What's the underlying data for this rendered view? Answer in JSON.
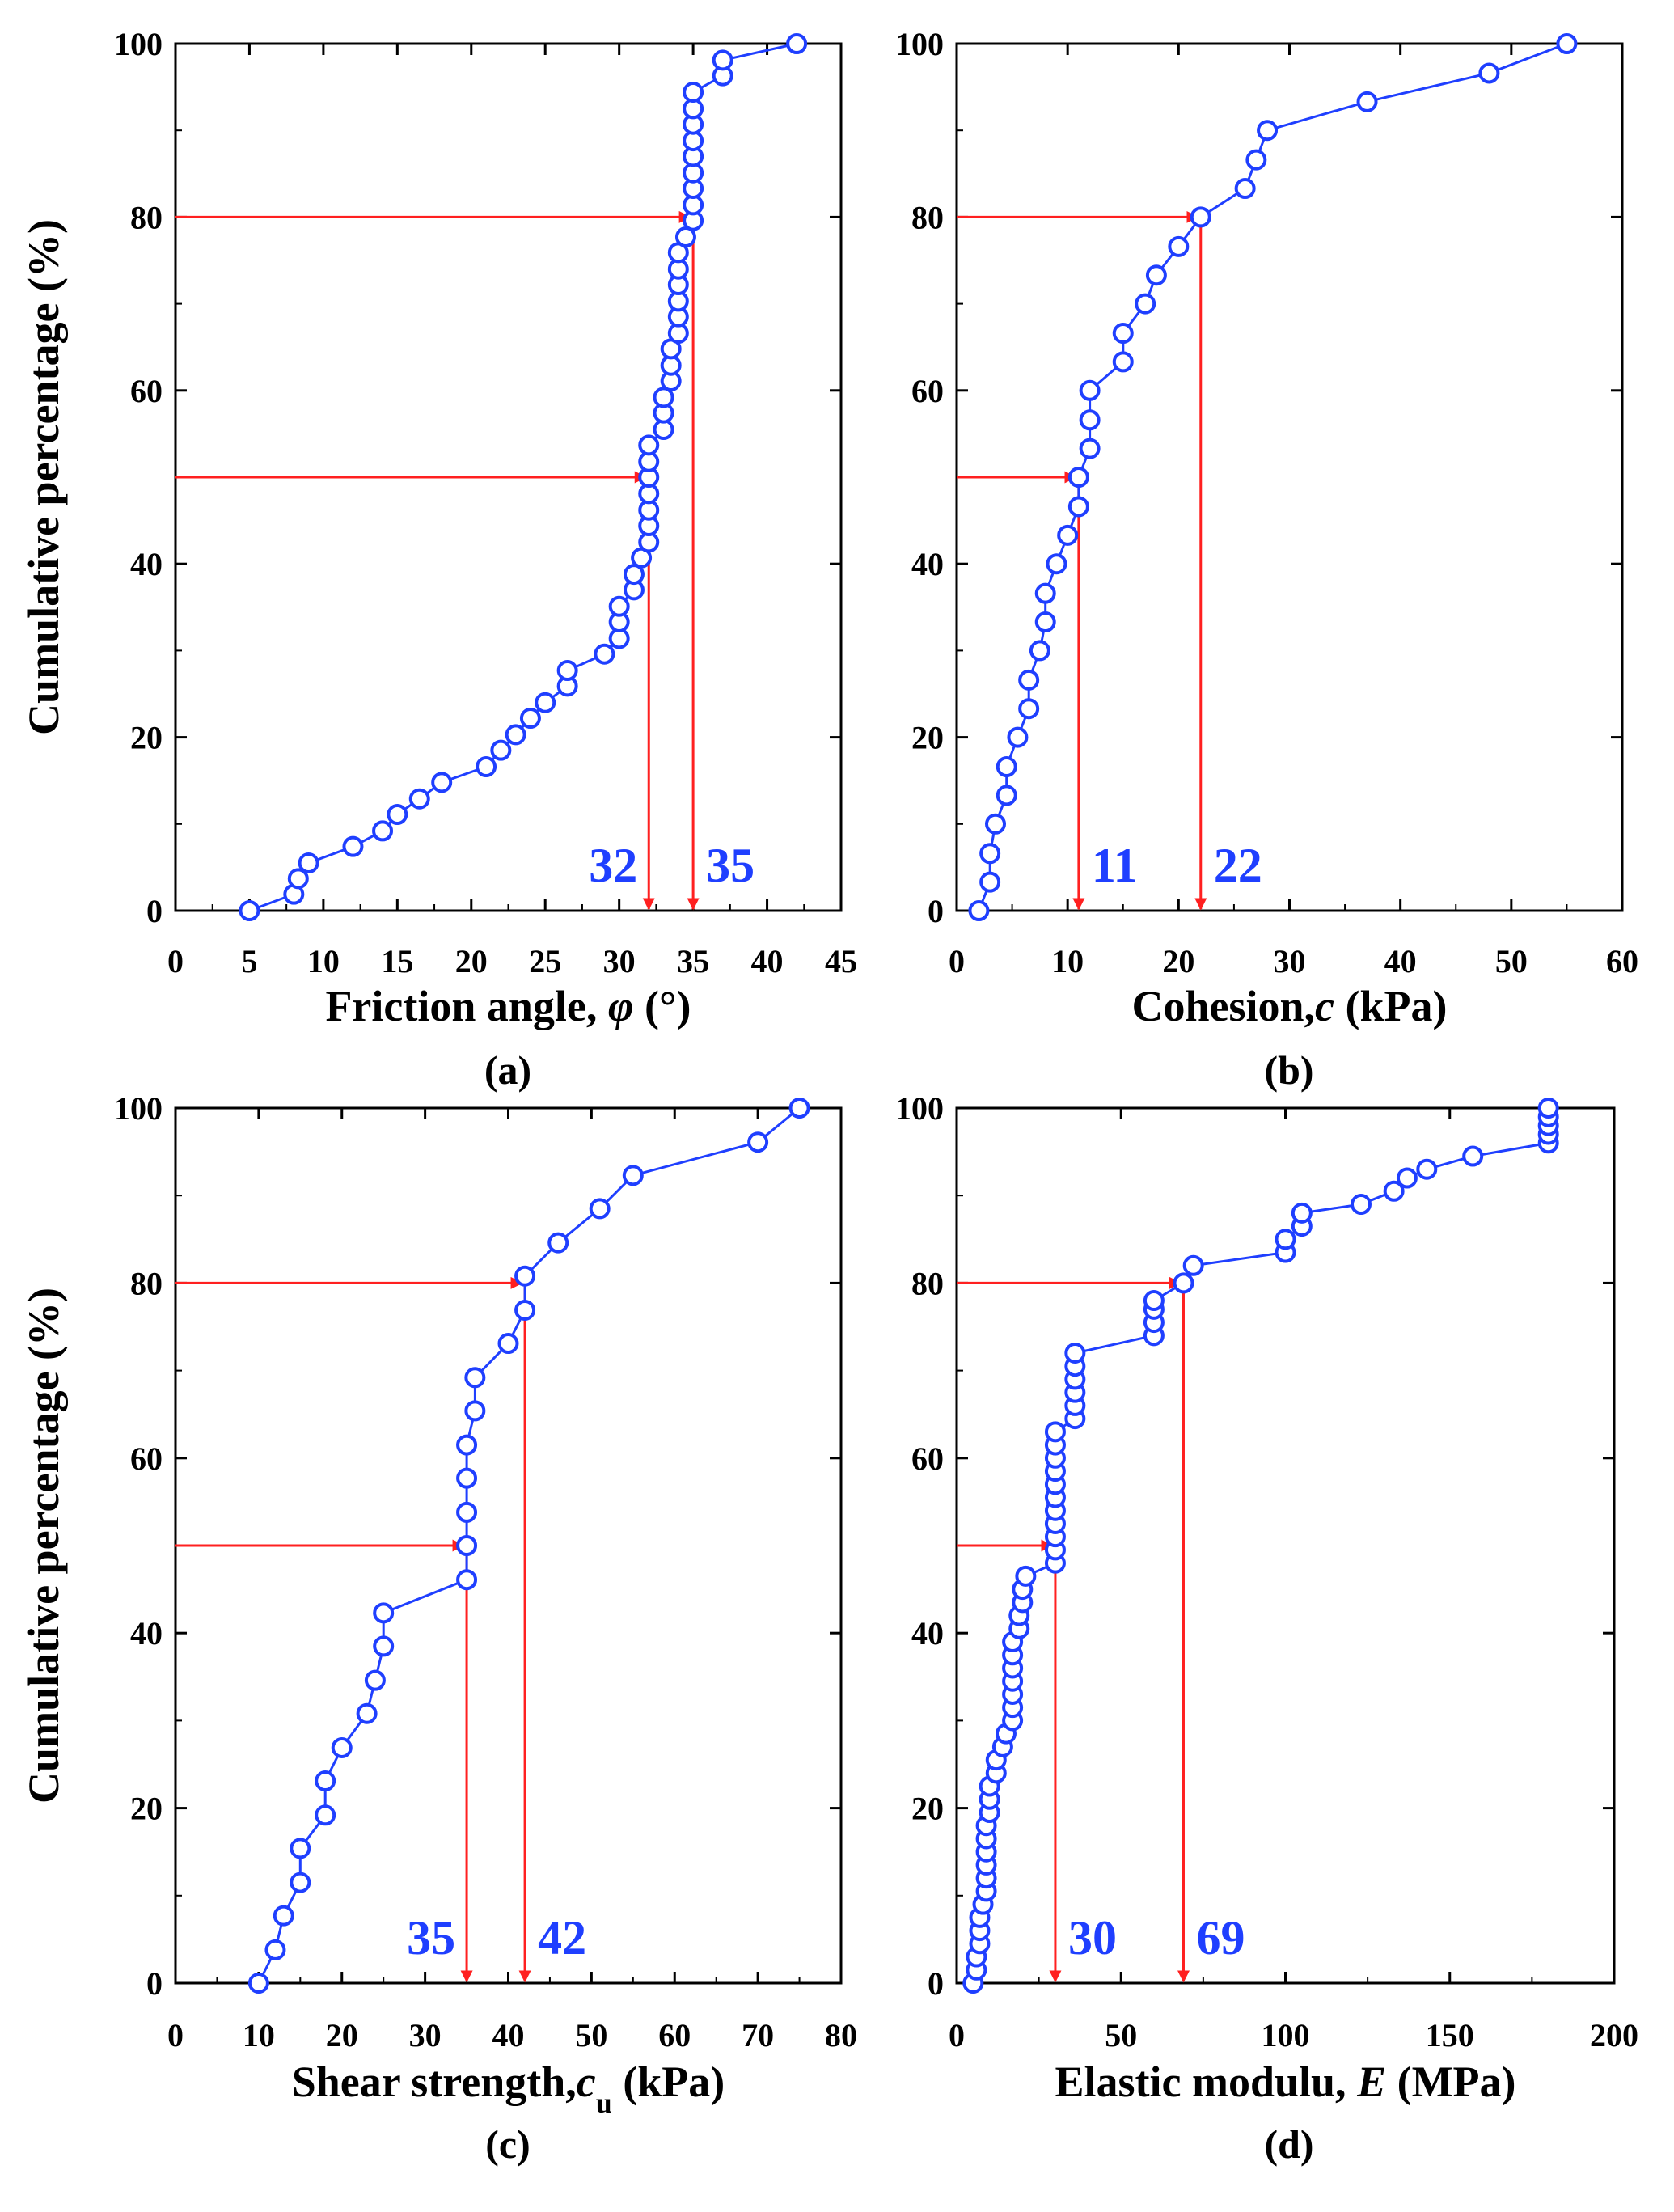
{
  "figure": {
    "y_axis_title": "Cumulative percentage (%)"
  },
  "chart_data": [
    {
      "panel_label": "(a)",
      "type": "line",
      "xlabel_prefix": "Friction angle, ",
      "xlabel_symbol": "φ",
      "xlabel_suffix": " (°)",
      "ylabel": "Cumulative percentage (%)",
      "xlim": [
        0,
        45
      ],
      "ylim": [
        0,
        100
      ],
      "xticks": [
        0,
        5,
        10,
        15,
        20,
        25,
        30,
        35,
        40,
        45
      ],
      "yticks": [
        0,
        20,
        40,
        60,
        80,
        100
      ],
      "xtick_labels": [
        "0",
        "5",
        "10",
        "15",
        "20",
        "25",
        "30",
        "35",
        "40",
        "45"
      ],
      "ytick_labels": [
        "0",
        "20",
        "40",
        "60",
        "80",
        "100"
      ],
      "series_color": "#1f3fff",
      "annotation_color": "#ff2020",
      "label_color": "#1f3fff",
      "points": [
        [
          5,
          0
        ],
        [
          8,
          1.9
        ],
        [
          8.3,
          3.7
        ],
        [
          9,
          5.5
        ],
        [
          12,
          7.4
        ],
        [
          14,
          9.2
        ],
        [
          15,
          11.1
        ],
        [
          16.5,
          12.9
        ],
        [
          18,
          14.8
        ],
        [
          21,
          16.6
        ],
        [
          22,
          18.5
        ],
        [
          23,
          20.3
        ],
        [
          24,
          22.2
        ],
        [
          25,
          24
        ],
        [
          26.5,
          25.9
        ],
        [
          26.5,
          27.7
        ],
        [
          29,
          29.6
        ],
        [
          30,
          31.4
        ],
        [
          30,
          33.3
        ],
        [
          30,
          35.1
        ],
        [
          31,
          37
        ],
        [
          31,
          38.8
        ],
        [
          31.5,
          40.7
        ],
        [
          32,
          42.5
        ],
        [
          32,
          44.4
        ],
        [
          32,
          46.2
        ],
        [
          32,
          48.1
        ],
        [
          32,
          50
        ],
        [
          32,
          51.8
        ],
        [
          32,
          53.7
        ],
        [
          33,
          55.5
        ],
        [
          33,
          57.4
        ],
        [
          33,
          59.2
        ],
        [
          33.5,
          61.1
        ],
        [
          33.5,
          62.9
        ],
        [
          33.5,
          64.8
        ],
        [
          34,
          66.6
        ],
        [
          34,
          68.5
        ],
        [
          34,
          70.3
        ],
        [
          34,
          72.2
        ],
        [
          34,
          74
        ],
        [
          34,
          75.9
        ],
        [
          34.5,
          77.7
        ],
        [
          35,
          79.6
        ],
        [
          35,
          81.4
        ],
        [
          35,
          83.3
        ],
        [
          35,
          85.1
        ],
        [
          35,
          87
        ],
        [
          35,
          88.8
        ],
        [
          35,
          90.7
        ],
        [
          35,
          92.5
        ],
        [
          35,
          94.4
        ],
        [
          37,
          96.3
        ],
        [
          37,
          98.1
        ],
        [
          42,
          100
        ]
      ],
      "annotations": [
        {
          "percent": 50,
          "value": 32,
          "label": "32"
        },
        {
          "percent": 80,
          "value": 35,
          "label": "35"
        }
      ]
    },
    {
      "panel_label": "(b)",
      "type": "line",
      "xlabel_prefix": "Cohesion,",
      "xlabel_symbol": "c",
      "xlabel_suffix": " (kPa)",
      "ylabel": "",
      "xlim": [
        0,
        60
      ],
      "ylim": [
        0,
        100
      ],
      "xticks": [
        0,
        10,
        20,
        30,
        40,
        50,
        60
      ],
      "yticks": [
        0,
        20,
        40,
        60,
        80,
        100
      ],
      "xtick_labels": [
        "0",
        "10",
        "20",
        "30",
        "40",
        "50",
        "60"
      ],
      "ytick_labels": [
        "0",
        "20",
        "40",
        "60",
        "80",
        "100"
      ],
      "series_color": "#1f3fff",
      "annotation_color": "#ff2020",
      "label_color": "#1f3fff",
      "points": [
        [
          2,
          0
        ],
        [
          3,
          3.3
        ],
        [
          3,
          6.6
        ],
        [
          3.5,
          10
        ],
        [
          4.5,
          13.3
        ],
        [
          4.5,
          16.6
        ],
        [
          5.5,
          20
        ],
        [
          6.5,
          23.3
        ],
        [
          6.5,
          26.6
        ],
        [
          7.5,
          30
        ],
        [
          8,
          33.3
        ],
        [
          8,
          36.6
        ],
        [
          9,
          40
        ],
        [
          10,
          43.3
        ],
        [
          11,
          46.6
        ],
        [
          11,
          50
        ],
        [
          12,
          53.3
        ],
        [
          12,
          56.6
        ],
        [
          12,
          60
        ],
        [
          15,
          63.3
        ],
        [
          15,
          66.6
        ],
        [
          17,
          70
        ],
        [
          18,
          73.3
        ],
        [
          20,
          76.6
        ],
        [
          22,
          80
        ],
        [
          26,
          83.3
        ],
        [
          27,
          86.6
        ],
        [
          28,
          90
        ],
        [
          37,
          93.3
        ],
        [
          48,
          96.6
        ],
        [
          55,
          100
        ]
      ],
      "annotations": [
        {
          "percent": 50,
          "value": 11,
          "label": "11"
        },
        {
          "percent": 80,
          "value": 22,
          "label": "22"
        }
      ]
    },
    {
      "panel_label": "(c)",
      "type": "line",
      "xlabel_prefix": "Shear strength,",
      "xlabel_symbol": "c",
      "xlabel_subscript": "u",
      "xlabel_suffix": " (kPa)",
      "ylabel": "Cumulative percentage (%)",
      "xlim": [
        0,
        80
      ],
      "ylim": [
        0,
        100
      ],
      "xticks": [
        0,
        10,
        20,
        30,
        40,
        50,
        60,
        70,
        80
      ],
      "yticks": [
        0,
        20,
        40,
        60,
        80,
        100
      ],
      "xtick_labels": [
        "0",
        "10",
        "20",
        "30",
        "40",
        "50",
        "60",
        "70",
        "80"
      ],
      "ytick_labels": [
        "0",
        "20",
        "40",
        "60",
        "80",
        "100"
      ],
      "series_color": "#1f3fff",
      "annotation_color": "#ff2020",
      "label_color": "#1f3fff",
      "points": [
        [
          10,
          0
        ],
        [
          12,
          3.8
        ],
        [
          13,
          7.7
        ],
        [
          15,
          11.5
        ],
        [
          15,
          15.4
        ],
        [
          18,
          19.2
        ],
        [
          18,
          23.1
        ],
        [
          20,
          26.9
        ],
        [
          23,
          30.8
        ],
        [
          24,
          34.6
        ],
        [
          25,
          38.5
        ],
        [
          25,
          42.3
        ],
        [
          35,
          46.1
        ],
        [
          35,
          50
        ],
        [
          35,
          53.8
        ],
        [
          35,
          57.7
        ],
        [
          35,
          61.5
        ],
        [
          36,
          65.4
        ],
        [
          36,
          69.2
        ],
        [
          40,
          73.1
        ],
        [
          42,
          76.9
        ],
        [
          42,
          80.8
        ],
        [
          46,
          84.6
        ],
        [
          51,
          88.5
        ],
        [
          55,
          92.3
        ],
        [
          70,
          96.1
        ],
        [
          75,
          100
        ]
      ],
      "annotations": [
        {
          "percent": 50,
          "value": 35,
          "label": "35"
        },
        {
          "percent": 80,
          "value": 42,
          "label": "42"
        }
      ]
    },
    {
      "panel_label": "(d)",
      "type": "line",
      "xlabel_prefix": "Elastic modulu, ",
      "xlabel_symbol": "E",
      "xlabel_suffix": " (MPa)",
      "ylabel": "",
      "xlim": [
        0,
        200
      ],
      "ylim": [
        0,
        100
      ],
      "xticks": [
        0,
        50,
        100,
        150,
        200
      ],
      "yticks": [
        0,
        20,
        40,
        60,
        80,
        100
      ],
      "xtick_labels": [
        "0",
        "50",
        "100",
        "150",
        "200"
      ],
      "ytick_labels": [
        "0",
        "20",
        "40",
        "60",
        "80",
        "100"
      ],
      "series_color": "#1f3fff",
      "annotation_color": "#ff2020",
      "label_color": "#1f3fff",
      "points": [
        [
          5,
          0
        ],
        [
          6,
          1.5
        ],
        [
          6,
          3
        ],
        [
          7,
          4.5
        ],
        [
          7,
          6
        ],
        [
          7,
          7.5
        ],
        [
          8,
          9
        ],
        [
          9,
          10.5
        ],
        [
          9,
          12
        ],
        [
          9,
          13.5
        ],
        [
          9,
          15
        ],
        [
          9,
          16.5
        ],
        [
          9,
          18
        ],
        [
          10,
          19.5
        ],
        [
          10,
          21
        ],
        [
          10,
          22.5
        ],
        [
          12,
          24
        ],
        [
          12,
          25.5
        ],
        [
          14,
          27
        ],
        [
          15,
          28.5
        ],
        [
          17,
          30
        ],
        [
          17,
          31.5
        ],
        [
          17,
          33
        ],
        [
          17,
          34.5
        ],
        [
          17,
          36
        ],
        [
          17,
          37.5
        ],
        [
          17,
          39
        ],
        [
          19,
          40.5
        ],
        [
          19,
          42
        ],
        [
          20,
          43.5
        ],
        [
          20,
          45
        ],
        [
          21,
          46.5
        ],
        [
          30,
          48
        ],
        [
          30,
          49.5
        ],
        [
          30,
          51
        ],
        [
          30,
          52.5
        ],
        [
          30,
          54
        ],
        [
          30,
          55.5
        ],
        [
          30,
          57
        ],
        [
          30,
          58.5
        ],
        [
          30,
          60
        ],
        [
          30,
          61.5
        ],
        [
          30,
          63
        ],
        [
          36,
          64.5
        ],
        [
          36,
          66
        ],
        [
          36,
          67.5
        ],
        [
          36,
          69
        ],
        [
          36,
          70.5
        ],
        [
          36,
          72
        ],
        [
          60,
          74
        ],
        [
          60,
          75.5
        ],
        [
          60,
          77
        ],
        [
          60,
          78
        ],
        [
          69,
          80
        ],
        [
          72,
          82
        ],
        [
          100,
          83.5
        ],
        [
          100,
          85
        ],
        [
          105,
          86.5
        ],
        [
          105,
          88
        ],
        [
          123,
          89
        ],
        [
          133,
          90.5
        ],
        [
          137,
          92
        ],
        [
          143,
          93
        ],
        [
          157,
          94.5
        ],
        [
          180,
          96
        ],
        [
          180,
          97
        ],
        [
          180,
          98
        ],
        [
          180,
          99
        ],
        [
          180,
          100
        ]
      ],
      "annotations": [
        {
          "percent": 50,
          "value": 30,
          "label": "30"
        },
        {
          "percent": 80,
          "value": 69,
          "label": "69"
        }
      ]
    }
  ]
}
